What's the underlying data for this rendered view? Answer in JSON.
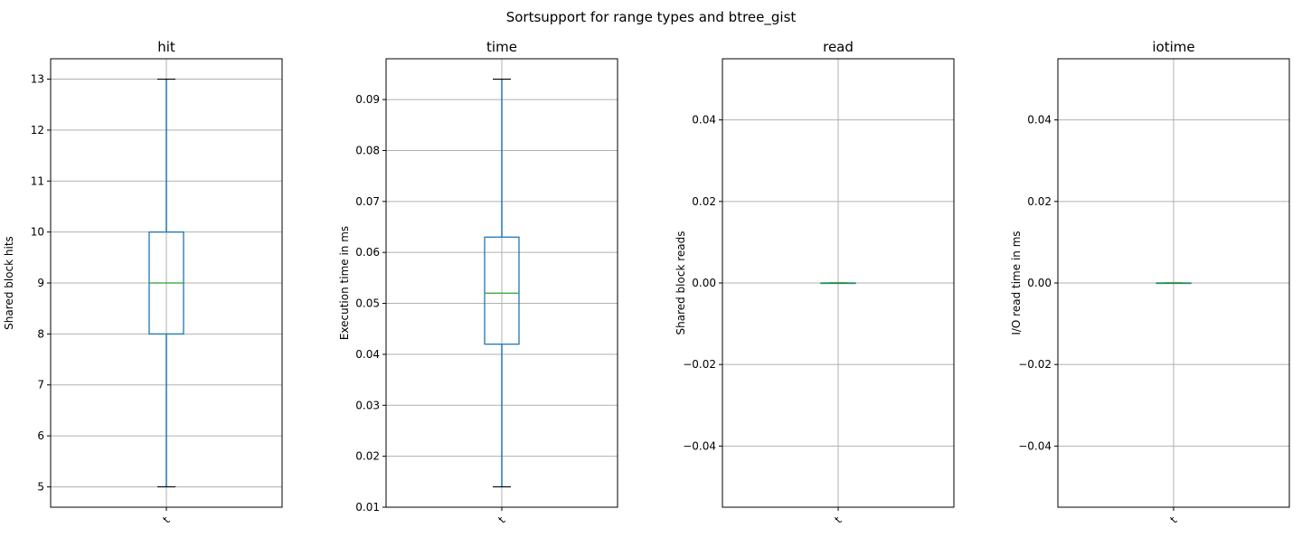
{
  "chart_data": [
    {
      "type": "box",
      "title": "hit",
      "ylabel": "Shared block hits",
      "categories": [
        "t"
      ],
      "box": {
        "whislo": 5,
        "q1": 8,
        "med": 9,
        "q3": 10,
        "whishi": 13
      },
      "ylim": [
        4.6,
        13.4
      ],
      "yticks": [
        5,
        6,
        7,
        8,
        9,
        10,
        11,
        12,
        13
      ],
      "ytick_labels": [
        "5",
        "6",
        "7",
        "8",
        "9",
        "10",
        "11",
        "12",
        "13"
      ],
      "grid": true
    },
    {
      "type": "box",
      "title": "time",
      "ylabel": "Execution time in ms",
      "categories": [
        "t"
      ],
      "box": {
        "whislo": 0.014,
        "q1": 0.042,
        "med": 0.052,
        "q3": 0.063,
        "whishi": 0.094
      },
      "ylim": [
        0.01,
        0.098
      ],
      "yticks": [
        0.01,
        0.02,
        0.03,
        0.04,
        0.05,
        0.06,
        0.07,
        0.08,
        0.09
      ],
      "ytick_labels": [
        "0.01",
        "0.02",
        "0.03",
        "0.04",
        "0.05",
        "0.06",
        "0.07",
        "0.08",
        "0.09"
      ],
      "grid": true
    },
    {
      "type": "box",
      "title": "read",
      "ylabel": "Shared block reads",
      "categories": [
        "t"
      ],
      "box": {
        "whislo": 0,
        "q1": 0,
        "med": 0,
        "q3": 0,
        "whishi": 0
      },
      "ylim": [
        -0.055,
        0.055
      ],
      "yticks": [
        -0.04,
        -0.02,
        0,
        0.02,
        0.04
      ],
      "ytick_labels": [
        "−0.04",
        "−0.02",
        "0.00",
        "0.02",
        "0.04"
      ],
      "grid": true
    },
    {
      "type": "box",
      "title": "iotime",
      "ylabel": "I/O read time in ms",
      "categories": [
        "t"
      ],
      "box": {
        "whislo": 0,
        "q1": 0,
        "med": 0,
        "q3": 0,
        "whishi": 0
      },
      "ylim": [
        -0.055,
        0.055
      ],
      "yticks": [
        -0.04,
        -0.02,
        0,
        0.02,
        0.04
      ],
      "ytick_labels": [
        "−0.04",
        "−0.02",
        "0.00",
        "0.02",
        "0.04"
      ],
      "grid": true
    }
  ],
  "suptitle": "Sortsupport for range types and btree_gist",
  "colors": {
    "box": "#1f77b4",
    "median": "#2ca02c",
    "grid": "#b0b0b0",
    "whisker_cap": "#000000"
  }
}
